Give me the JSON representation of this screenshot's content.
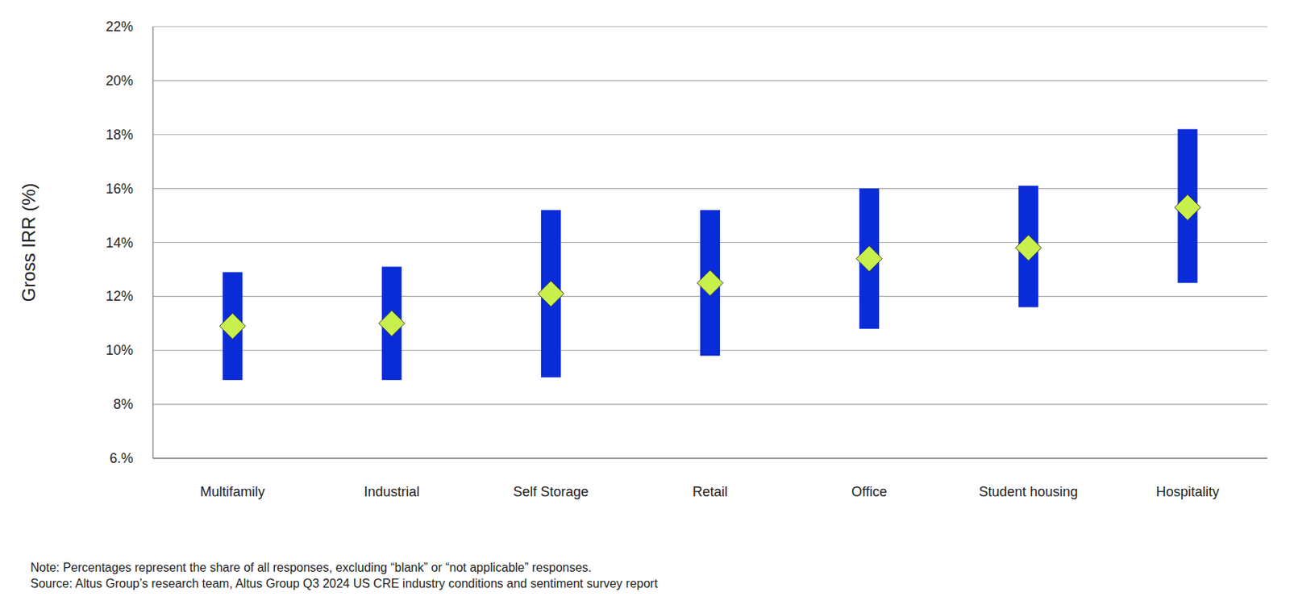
{
  "chart_data": {
    "type": "range",
    "y_label": "Gross IRR (%)",
    "categories": [
      "Multifamily",
      "Industrial",
      "Self Storage",
      "Retail",
      "Office",
      "Student housing",
      "Hospitality"
    ],
    "series": [
      {
        "type": "range",
        "color": "#0a2bd8",
        "low": [
          8.9,
          8.9,
          9.0,
          9.8,
          10.8,
          11.6,
          12.5
        ],
        "high": [
          12.9,
          13.1,
          15.2,
          15.2,
          16.0,
          16.1,
          18.2
        ]
      },
      {
        "type": "marker",
        "marker": "diamond",
        "color": "#c8f04c",
        "values": [
          10.9,
          11.0,
          12.1,
          12.5,
          13.4,
          13.8,
          15.3
        ]
      }
    ],
    "ylim": [
      6,
      22
    ],
    "yticks": [
      {
        "value": 6,
        "label": "6.%"
      },
      {
        "value": 8,
        "label": "8%"
      },
      {
        "value": 10,
        "label": "10%"
      },
      {
        "value": 12,
        "label": "12%"
      },
      {
        "value": 14,
        "label": "14%"
      },
      {
        "value": 16,
        "label": "16%"
      },
      {
        "value": 18,
        "label": "18%"
      },
      {
        "value": 20,
        "label": "20%"
      },
      {
        "value": 22,
        "label": "22%"
      }
    ],
    "grid": true,
    "note": "Note: Percentages represent the share of all responses, excluding “blank” or “not applicable” responses.",
    "source": "Source: Altus Group’s research team, Altus Group Q3 2024 US CRE industry conditions and sentiment survey report"
  }
}
